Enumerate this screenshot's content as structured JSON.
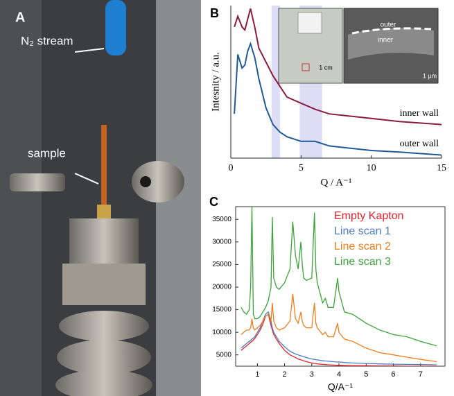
{
  "photo": {
    "panel_label": "A",
    "labels": [
      "N₂ stream",
      "sample"
    ]
  },
  "chart_data": [
    {
      "type": "line",
      "panel_label": "B",
      "x_label": "Q / A⁻¹",
      "y_label": "Intesnity / a.u.",
      "x": [
        0.25,
        0.5,
        0.8,
        1.0,
        1.2,
        1.4,
        1.7,
        2.0,
        2.5,
        3.0,
        3.5,
        4,
        5,
        6,
        7,
        8,
        10,
        12,
        15
      ],
      "series": [
        {
          "name": "inner wall",
          "color": "#8b1a3a",
          "values": [
            8.6,
            9.3,
            8.6,
            8.4,
            9.1,
            9.8,
            8.6,
            7.2,
            6.3,
            5.4,
            4.7,
            4.0,
            3.6,
            3.2,
            2.9,
            2.8,
            2.6,
            2.4,
            2.2
          ]
        },
        {
          "name": "outer wall",
          "color": "#1f5a96",
          "values": [
            2.9,
            6.8,
            5.9,
            6.1,
            7.0,
            7.5,
            6.6,
            5.2,
            3.3,
            2.2,
            1.7,
            1.4,
            1.1,
            1.1,
            0.8,
            0.7,
            0.5,
            0.4,
            0.2
          ]
        }
      ],
      "highlight_bands": [
        [
          2.9,
          3.5
        ],
        [
          4.9,
          6.5
        ]
      ],
      "band_color": "#d4d4f4",
      "xlim": [
        0,
        15
      ],
      "ylim": [
        0,
        10
      ],
      "xticks": [
        0,
        5,
        10,
        15
      ],
      "inset": {
        "labels": [
          "1 cm",
          "outer",
          "inner",
          "1 μm"
        ]
      }
    },
    {
      "type": "line",
      "panel_label": "C",
      "x_label": "Q/A⁻¹",
      "x": [
        0.4,
        0.5,
        0.6,
        0.7,
        0.75,
        0.8,
        0.85,
        0.9,
        1.0,
        1.1,
        1.2,
        1.3,
        1.4,
        1.5,
        1.55,
        1.6,
        1.7,
        1.8,
        2.0,
        2.2,
        2.3,
        2.4,
        2.5,
        2.6,
        2.65,
        2.7,
        2.8,
        3.0,
        3.1,
        3.15,
        3.2,
        3.4,
        3.5,
        3.6,
        3.8,
        3.95,
        4.0,
        4.2,
        4.5,
        5.0,
        5.5,
        6.0,
        6.5,
        7.0,
        7.6
      ],
      "series": [
        {
          "name": "Empty Kapton",
          "color": "#e8212a",
          "values": [
            6000,
            6500,
            7000,
            7500,
            7800,
            8000,
            8300,
            8600,
            9500,
            10500,
            11800,
            13500,
            14000,
            11500,
            10500,
            9500,
            8500,
            7500,
            6000,
            5000,
            4700,
            4400,
            4100,
            3900,
            3800,
            3700,
            3500,
            3200,
            3100,
            3050,
            3000,
            2900,
            2850,
            2800,
            2750,
            2700,
            2700,
            2650,
            2600,
            2600,
            2550,
            2550,
            2500,
            2500,
            2500
          ]
        },
        {
          "name": "Line scan 1",
          "color": "#4a7cc0",
          "values": [
            6500,
            7000,
            7500,
            8000,
            8200,
            8500,
            8700,
            9000,
            10000,
            11000,
            12500,
            14000,
            14500,
            12500,
            11000,
            10000,
            9000,
            8000,
            6800,
            5800,
            5500,
            5200,
            5000,
            4800,
            4700,
            4600,
            4400,
            4100,
            4000,
            3950,
            3900,
            3700,
            3650,
            3600,
            3500,
            3400,
            3450,
            3300,
            3200,
            3100,
            3000,
            2950,
            2900,
            2850,
            2800
          ]
        },
        {
          "name": "Line scan 2",
          "color": "#f07d1a",
          "values": [
            9500,
            10000,
            10500,
            10500,
            11000,
            13000,
            11000,
            10500,
            11000,
            11500,
            12500,
            13500,
            14000,
            12500,
            16500,
            12500,
            11000,
            10500,
            11000,
            12500,
            18500,
            13000,
            12000,
            14500,
            12500,
            11500,
            11000,
            11000,
            16500,
            12000,
            11000,
            9500,
            10000,
            9000,
            9000,
            12000,
            10000,
            8500,
            8000,
            6500,
            5500,
            5000,
            4500,
            4000,
            3500
          ]
        },
        {
          "name": "Line scan 3",
          "color": "#3aa43a",
          "values": [
            15500,
            14500,
            14000,
            15000,
            20000,
            38000,
            14000,
            13000,
            13000,
            13500,
            14500,
            15500,
            17000,
            20000,
            35500,
            22000,
            20000,
            19500,
            21000,
            24000,
            34500,
            27000,
            24000,
            30000,
            25000,
            22000,
            21500,
            22000,
            36500,
            24000,
            21000,
            16500,
            17500,
            15500,
            15500,
            22000,
            19000,
            14500,
            14000,
            12000,
            10500,
            9500,
            9000,
            8000,
            7000
          ]
        }
      ],
      "xlim": [
        0.2,
        7.9
      ],
      "ylim": [
        2500,
        37800
      ],
      "xticks": [
        1,
        2,
        3,
        4,
        5,
        6,
        7
      ],
      "yticks": [
        5000,
        10000,
        15000,
        20000,
        25000,
        30000,
        35000
      ]
    }
  ]
}
